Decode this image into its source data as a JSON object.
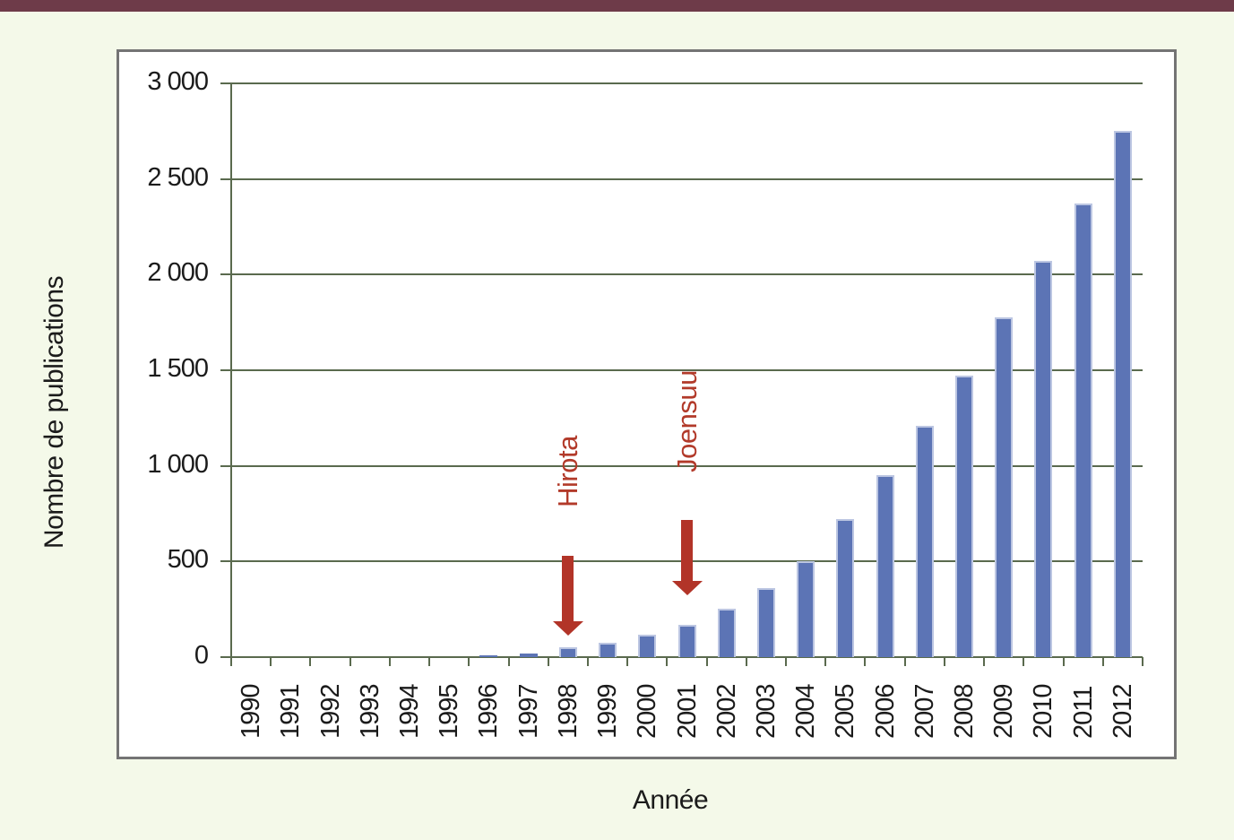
{
  "chart_data": {
    "type": "bar",
    "title": "",
    "xlabel": "Année",
    "ylabel": "Nombre de publications",
    "categories": [
      "1990",
      "1991",
      "1992",
      "1993",
      "1994",
      "1995",
      "1996",
      "1997",
      "1998",
      "1999",
      "2000",
      "2001",
      "2002",
      "2003",
      "2004",
      "2005",
      "2006",
      "2007",
      "2008",
      "2009",
      "2010",
      "2011",
      "2012"
    ],
    "values": [
      0,
      0,
      0,
      0,
      0,
      0,
      10,
      20,
      50,
      75,
      115,
      170,
      255,
      360,
      500,
      720,
      950,
      1210,
      1470,
      1775,
      2070,
      2370,
      2750
    ],
    "ylim": [
      0,
      3000
    ],
    "ytick_interval": 500,
    "ytick_labels": [
      "0",
      "500",
      "1 000",
      "1 500",
      "2 000",
      "2 500",
      "3 000"
    ],
    "grid": "horizontal",
    "legend": "none",
    "annotations": [
      {
        "label": "Hirota",
        "year": "1998"
      },
      {
        "label": "Joensuu",
        "year": "2001"
      }
    ],
    "colors": {
      "bar": "#5C74B5",
      "bar_edge": "#BCC6E2",
      "arrow": "#B23428",
      "annotation_text": "#B23A2A",
      "gridline": "#5A6A4E",
      "text": "#1B1B1B",
      "top_bar": "#6E3B49",
      "background": "#F4F9E9",
      "panel": "#FFFFFF",
      "panel_border": "#747474"
    }
  }
}
